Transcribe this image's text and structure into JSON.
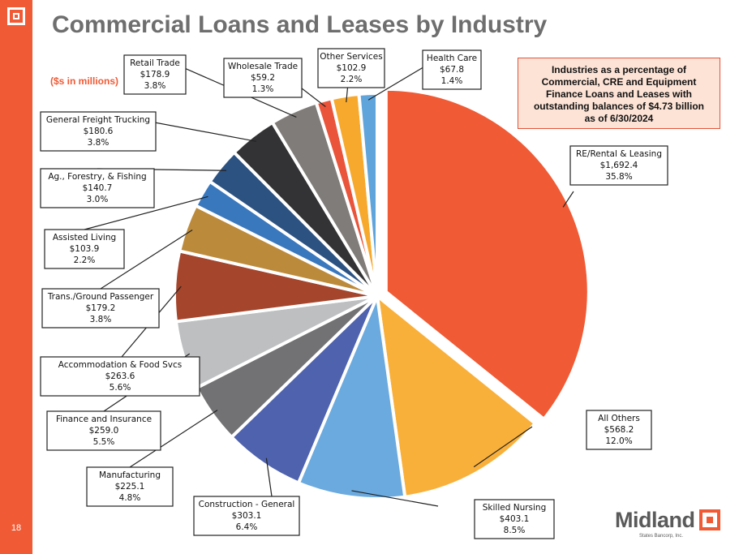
{
  "page": {
    "title": "Commercial Loans and Leases by Industry",
    "units": "($s in millions)",
    "callout": "Industries as a percentage of Commercial, CRE and Equipment Finance Loans and Leases with outstanding balances of $4.73 billion as of 6/30/2024",
    "page_number": "18",
    "brand_name": "Midland",
    "brand_sub": "States Bancorp, Inc."
  },
  "colors": {
    "accent": "#F05A35",
    "callout_bg": "#FDE3D6",
    "title": "#6E6E6E"
  },
  "chart_data": {
    "type": "pie",
    "start": "12 o'clock, clockwise",
    "exploded": "RE/Rental & Leasing",
    "slices": [
      {
        "label": "RE/Rental & Leasing",
        "amount": "$1,692.4",
        "value": 1692.4,
        "percent": "35.8%",
        "color": "#F05A35"
      },
      {
        "label": "All Others",
        "amount": "$568.2",
        "value": 568.2,
        "percent": "12.0%",
        "color": "#F9B03A"
      },
      {
        "label": "Skilled Nursing",
        "amount": "$403.1",
        "value": 403.1,
        "percent": "8.5%",
        "color": "#6BAADF"
      },
      {
        "label": "Construction - General",
        "amount": "$303.1",
        "value": 303.1,
        "percent": "6.4%",
        "color": "#4F62AE"
      },
      {
        "label": "Manufacturing",
        "amount": "$225.1",
        "value": 225.1,
        "percent": "4.8%",
        "color": "#727274"
      },
      {
        "label": "Finance and Insurance",
        "amount": "$259.0",
        "value": 259.0,
        "percent": "5.5%",
        "color": "#BEBFC1"
      },
      {
        "label": "Accommodation & Food Svcs",
        "amount": "$263.6",
        "value": 263.6,
        "percent": "5.6%",
        "color": "#A4452C"
      },
      {
        "label": "Trans./Ground Passenger",
        "amount": "$179.2",
        "value": 179.2,
        "percent": "3.8%",
        "color": "#BC8A3B"
      },
      {
        "label": "Assisted Living",
        "amount": "$103.9",
        "value": 103.9,
        "percent": "2.2%",
        "color": "#3A78BE"
      },
      {
        "label": "Ag., Forestry, & Fishing",
        "amount": "$140.7",
        "value": 140.7,
        "percent": "3.0%",
        "color": "#2C5282"
      },
      {
        "label": "General Freight Trucking",
        "amount": "$180.6",
        "value": 180.6,
        "percent": "3.8%",
        "color": "#333335"
      },
      {
        "label": "Retail Trade",
        "amount": "$178.9",
        "value": 178.9,
        "percent": "3.8%",
        "color": "#7F7C79"
      },
      {
        "label": "Wholesale Trade",
        "amount": "$59.2",
        "value": 59.2,
        "percent": "1.3%",
        "color": "#E9543A"
      },
      {
        "label": "Other Services",
        "amount": "$102.9",
        "value": 102.9,
        "percent": "2.2%",
        "color": "#F7A92E"
      },
      {
        "label": "Health Care",
        "amount": "$67.8",
        "value": 67.8,
        "percent": "1.4%",
        "color": "#5FA4DB"
      }
    ]
  }
}
